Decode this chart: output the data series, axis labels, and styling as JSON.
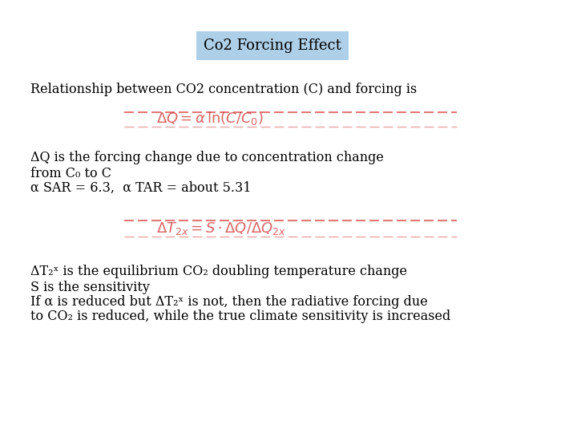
{
  "title": "Co2 Forcing Effect",
  "title_bg": "#aecfe8",
  "bg_color": "#ffffff",
  "line1": "Relationship between CO2 concentration (C) and forcing is",
  "bullet1_line1": "ΔQ is the forcing change due to concentration change",
  "bullet1_line2": "from C₀ to C",
  "bullet1_line3": "α SAR = 6.3,  α TAR = about 5.31",
  "bullet2_line1": "ΔT₂ˣ is the equilibrium CO₂ doubling temperature change",
  "bullet2_line2": "S is the sensitivity",
  "bullet2_line3": "If α is reduced but ΔT₂ˣ is not, then the radiative forcing due",
  "bullet2_line4": "to CO₂ is reduced, while the true climate sensitivity is increased",
  "formula_color": "#cc2222",
  "text_color": "#000000",
  "text_fontsize": 11.5,
  "formula_fontsize": 13,
  "title_fontsize": 13
}
